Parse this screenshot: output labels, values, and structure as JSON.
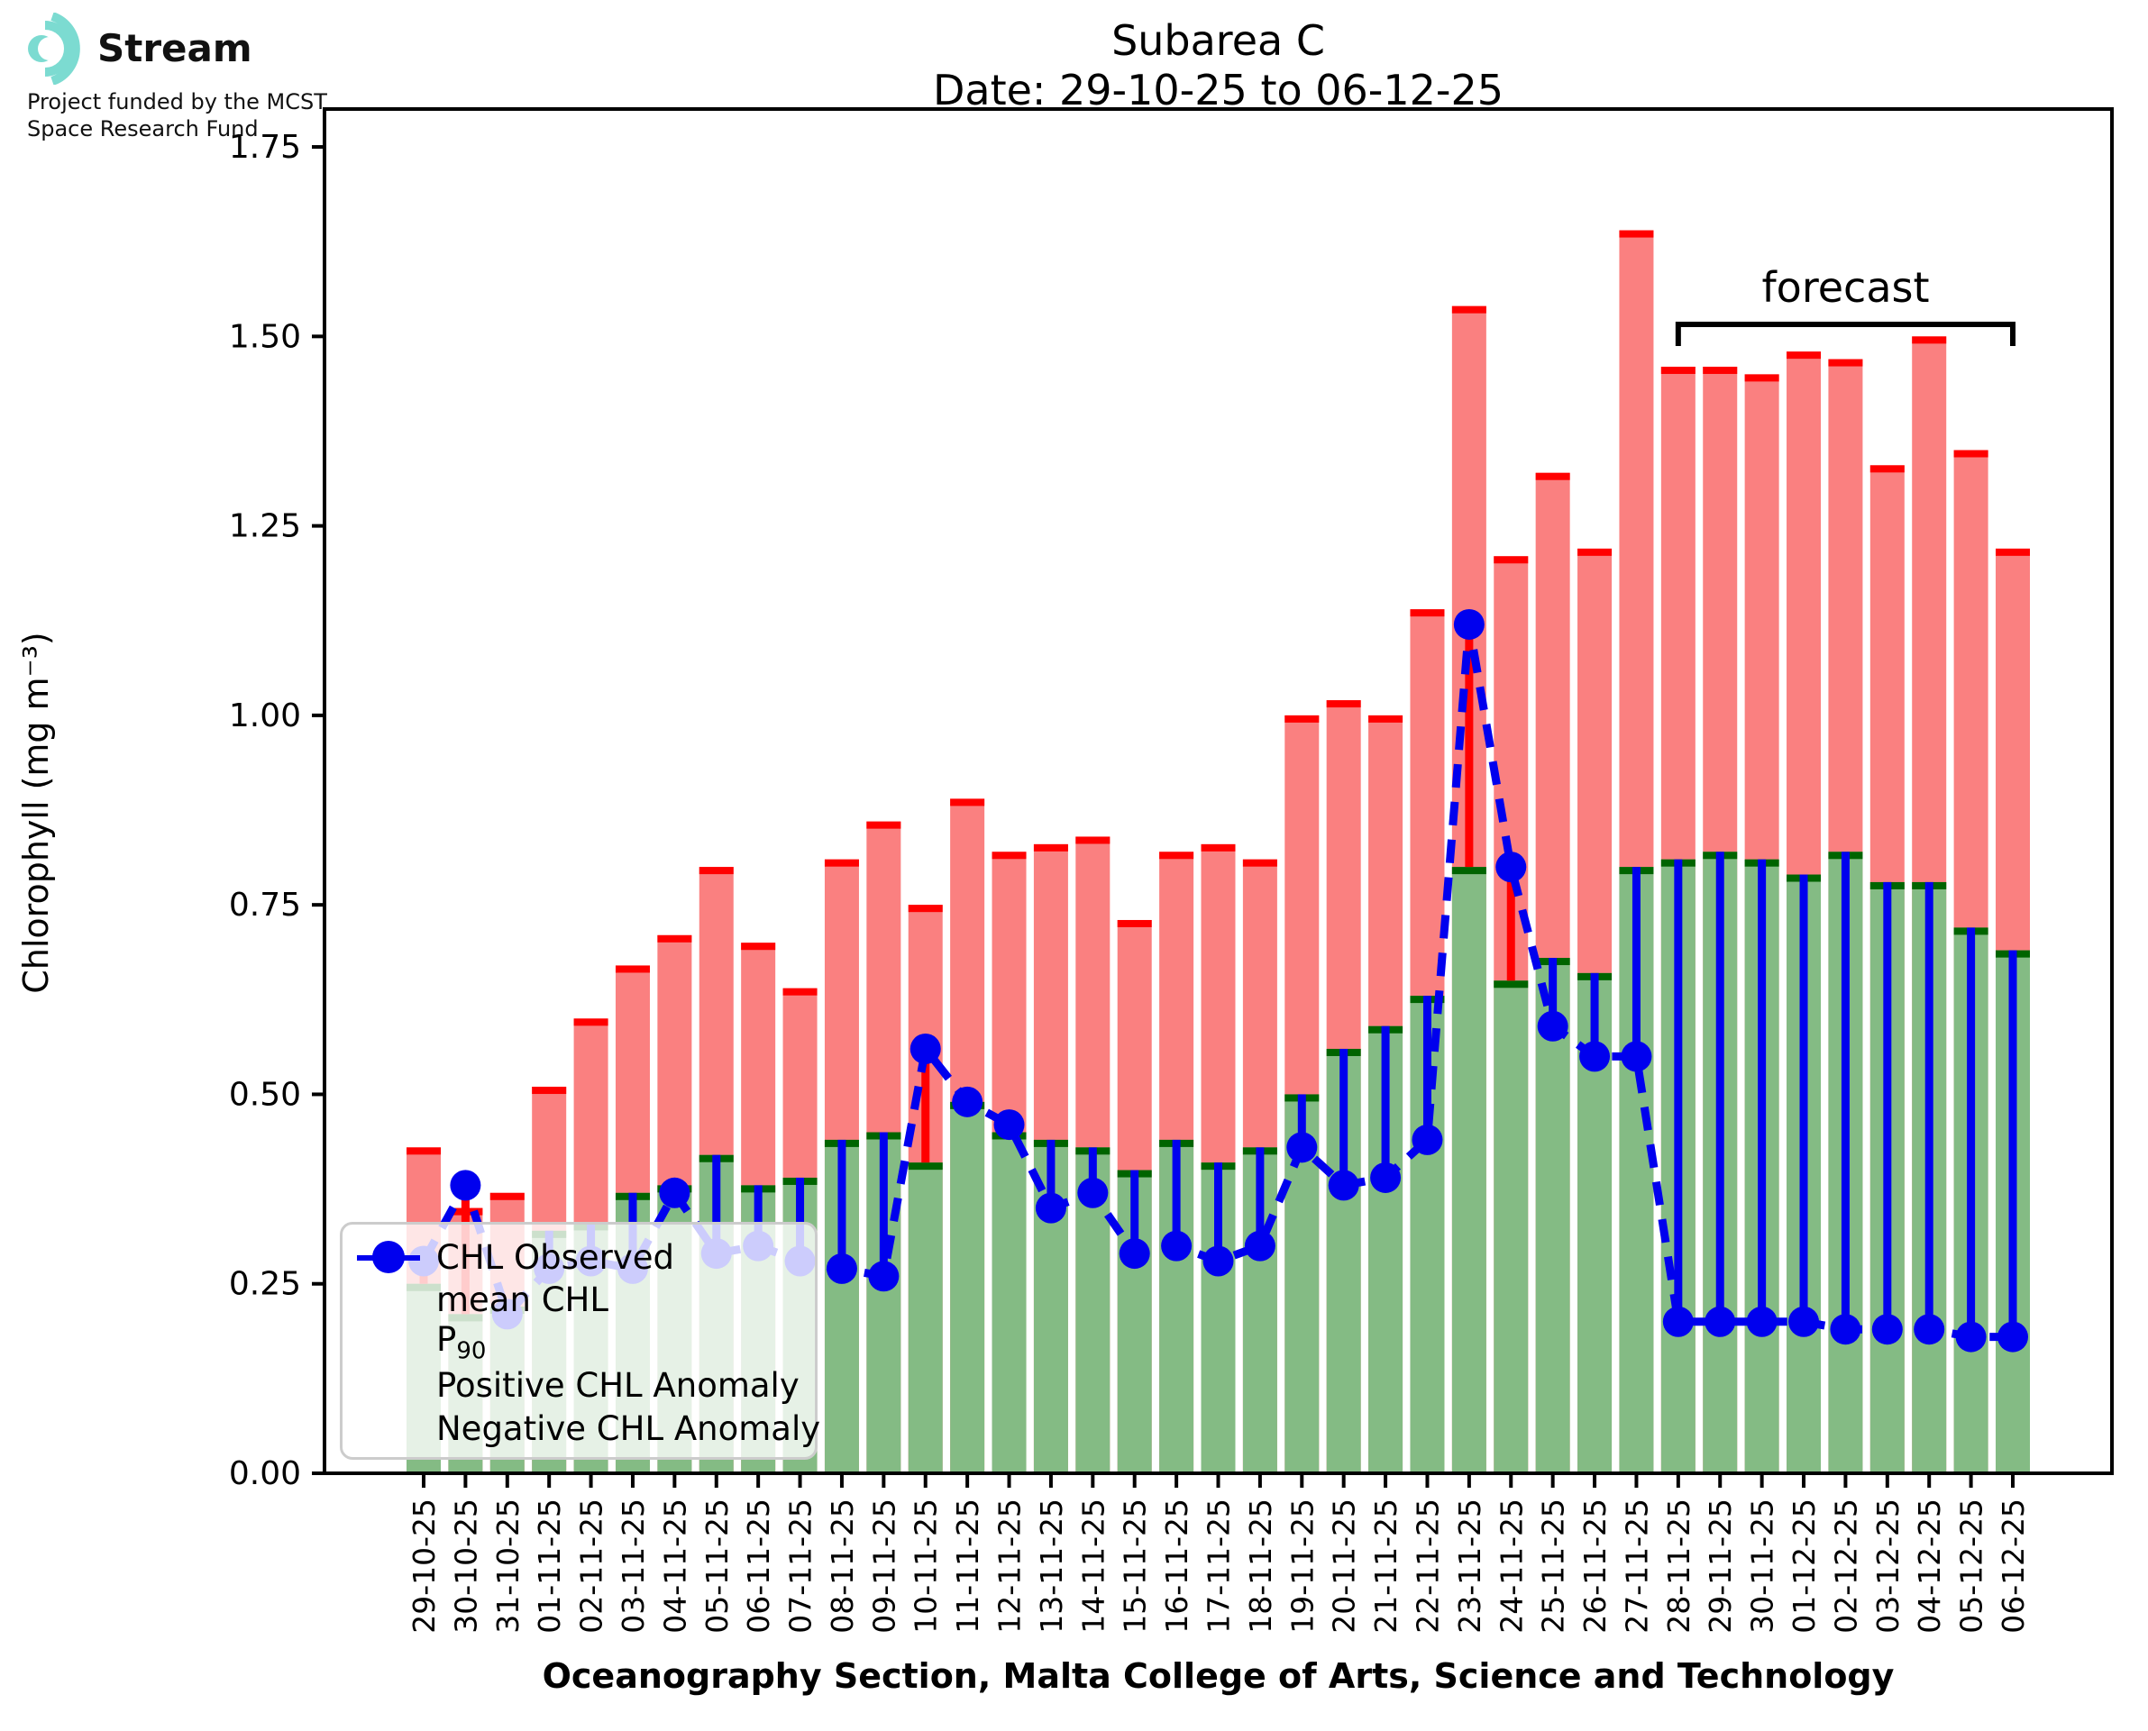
{
  "logo": {
    "brand": "Stream",
    "subtitle_line1": "Project funded by the MCST",
    "subtitle_line2": "Space Research Fund",
    "mark_color": "#7cdbd1"
  },
  "title": {
    "line1": "Subarea C",
    "line2": "Date: 29-10-25 to 06-12-25"
  },
  "axes": {
    "ylabel": "Chlorophyll (mg m⁻³)",
    "xlabel": "Oceanography Section, Malta College of Arts, Science and Technology"
  },
  "forecast_label": "forecast",
  "legend": {
    "observed": "CHL Observed",
    "mean": "mean CHL",
    "p90_main": "P",
    "p90_sub": "90",
    "positive": "Positive CHL Anomaly",
    "negative": "Negative CHL Anomaly"
  },
  "colors": {
    "p90_fill": "#fa8080",
    "p90_edge": "#ff0000",
    "mean_fill": "#84bb84",
    "mean_edge": "#006400",
    "positive_anomaly": "#ff0000",
    "negative_anomaly": "#0000ee",
    "observed": "#0000ee",
    "legend_mean_fill": "#90c290",
    "axis": "#000000"
  },
  "chart_data": {
    "type": "bar",
    "title": "Subarea C — Date: 29-10-25 to 06-12-25",
    "xlabel": "Oceanography Section, Malta College of Arts, Science and Technology",
    "ylabel": "Chlorophyll (mg m-3)",
    "ylim": [
      0,
      1.8
    ],
    "yticks": [
      "0.00",
      "0.25",
      "0.50",
      "0.75",
      "1.00",
      "1.25",
      "1.50",
      "1.75"
    ],
    "grid": false,
    "legend_position": "lower left",
    "forecast_start_index": 30,
    "categories": [
      "29-10-25",
      "30-10-25",
      "31-10-25",
      "01-11-25",
      "02-11-25",
      "03-11-25",
      "04-11-25",
      "05-11-25",
      "06-11-25",
      "07-11-25",
      "08-11-25",
      "09-11-25",
      "10-11-25",
      "11-11-25",
      "12-11-25",
      "13-11-25",
      "14-11-25",
      "15-11-25",
      "16-11-25",
      "17-11-25",
      "18-11-25",
      "19-11-25",
      "20-11-25",
      "21-11-25",
      "22-11-25",
      "23-11-25",
      "24-11-25",
      "25-11-25",
      "26-11-25",
      "27-11-25",
      "28-11-25",
      "29-11-25",
      "30-11-25",
      "01-12-25",
      "02-12-25",
      "03-12-25",
      "04-12-25",
      "05-12-25",
      "06-12-25"
    ],
    "series": [
      {
        "name": "P90",
        "values": [
          0.43,
          0.35,
          0.37,
          0.51,
          0.6,
          0.67,
          0.71,
          0.8,
          0.7,
          0.64,
          0.81,
          0.86,
          0.75,
          0.89,
          0.82,
          0.83,
          0.84,
          0.73,
          0.82,
          0.83,
          0.81,
          1.0,
          1.02,
          1.0,
          1.14,
          1.54,
          1.21,
          1.32,
          1.22,
          1.64,
          1.46,
          1.46,
          1.45,
          1.48,
          1.47,
          1.33,
          1.5,
          1.35,
          1.22
        ]
      },
      {
        "name": "mean CHL",
        "values": [
          0.25,
          0.21,
          0.22,
          0.32,
          0.33,
          0.37,
          0.38,
          0.42,
          0.38,
          0.39,
          0.44,
          0.45,
          0.41,
          0.49,
          0.45,
          0.44,
          0.43,
          0.4,
          0.44,
          0.41,
          0.43,
          0.5,
          0.56,
          0.59,
          0.63,
          0.8,
          0.65,
          0.68,
          0.66,
          0.8,
          0.81,
          0.82,
          0.81,
          0.79,
          0.82,
          0.78,
          0.78,
          0.72,
          0.69
        ]
      },
      {
        "name": "CHL Observed",
        "values": [
          0.28,
          0.38,
          0.21,
          0.27,
          0.28,
          0.27,
          0.37,
          0.29,
          0.3,
          0.28,
          0.27,
          0.26,
          0.56,
          0.49,
          0.46,
          0.35,
          0.37,
          0.29,
          0.3,
          0.28,
          0.3,
          0.43,
          0.38,
          0.39,
          0.44,
          1.12,
          0.8,
          0.59,
          0.55,
          0.55,
          0.2,
          0.2,
          0.2,
          0.2,
          0.19,
          0.19,
          0.19,
          0.18,
          0.18
        ]
      }
    ]
  }
}
